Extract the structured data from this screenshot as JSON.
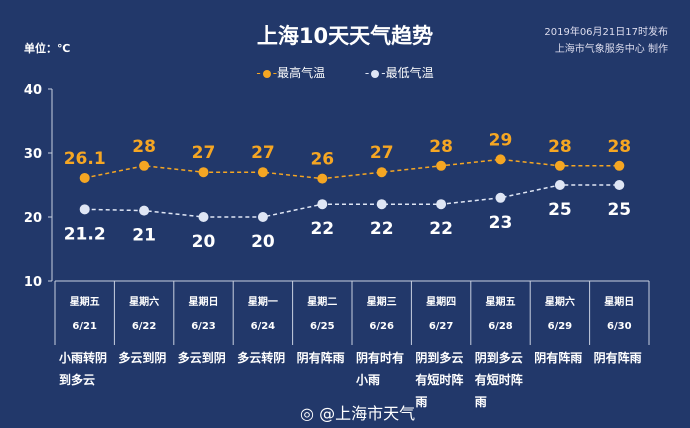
{
  "header": {
    "title": "上海10天天气趋势",
    "unit": "单位：℃",
    "publish_time": "2019年06月21日17时发布",
    "producer": "上海市气象服务中心 制作"
  },
  "colors": {
    "high": "#f5a623",
    "low": "#dfe6f5",
    "bg": "#22386a"
  },
  "watermark": "@上海市天气",
  "chart_data": {
    "type": "line",
    "title": "上海10天天气趋势",
    "ylabel": "℃",
    "ylim": [
      10,
      40
    ],
    "yticks": [
      "10",
      "20",
      "30",
      "40"
    ],
    "legend": {
      "position": "top-center"
    },
    "categories": [
      "6/21",
      "6/22",
      "6/23",
      "6/24",
      "6/25",
      "6/26",
      "6/27",
      "6/28",
      "6/29",
      "6/30"
    ],
    "weekdays": [
      "星期五",
      "星期六",
      "星期日",
      "星期一",
      "星期二",
      "星期三",
      "星期四",
      "星期五",
      "星期六",
      "星期日"
    ],
    "weather": [
      "小雨转阴到多云",
      "多云到阴",
      "多云到阴",
      "多云转阴",
      "阴有阵雨",
      "阴有时有小雨",
      "阴到多云有短时阵雨",
      "阴到多云有短时阵雨",
      "阴有阵雨",
      "阴有阵雨"
    ],
    "series": [
      {
        "name": "最高气温",
        "values": [
          26.1,
          28,
          27,
          27,
          26,
          27,
          28,
          29,
          28,
          28
        ],
        "labels": [
          "26.1",
          "28",
          "27",
          "27",
          "26",
          "27",
          "28",
          "29",
          "28",
          "28"
        ]
      },
      {
        "name": "最低气温",
        "values": [
          21.2,
          21,
          20,
          20,
          22,
          22,
          22,
          23,
          25,
          25
        ],
        "labels": [
          "21.2",
          "21",
          "20",
          "20",
          "22",
          "22",
          "22",
          "23",
          "25",
          "25"
        ]
      }
    ]
  }
}
